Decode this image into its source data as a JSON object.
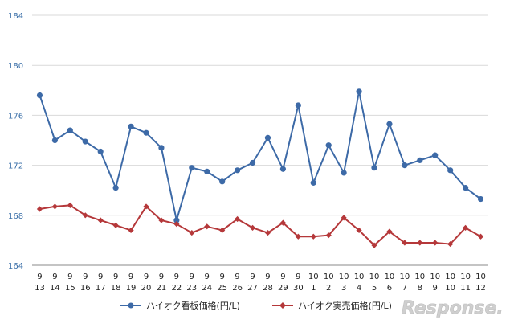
{
  "chart_data": {
    "type": "line",
    "ylim": [
      164,
      184
    ],
    "yticks": [
      164,
      168,
      172,
      176,
      180,
      184
    ],
    "grid": "horizontal",
    "legend_position": "bottom",
    "x_months": [
      "9",
      "9",
      "9",
      "9",
      "9",
      "9",
      "9",
      "9",
      "9",
      "9",
      "9",
      "9",
      "9",
      "9",
      "9",
      "9",
      "9",
      "9",
      "10",
      "10",
      "10",
      "10",
      "10",
      "10",
      "10",
      "10",
      "10",
      "10",
      "10",
      "10"
    ],
    "x_days": [
      "13",
      "14",
      "15",
      "16",
      "17",
      "18",
      "19",
      "20",
      "21",
      "22",
      "23",
      "24",
      "25",
      "26",
      "27",
      "28",
      "29",
      "30",
      "1",
      "2",
      "3",
      "4",
      "5",
      "6",
      "7",
      "8",
      "9",
      "10",
      "11",
      "12"
    ],
    "series": [
      {
        "name": "ハイオク看板価格(円/L)",
        "color": "#3d6aa7",
        "marker": "circle",
        "values": [
          177.6,
          174.0,
          174.8,
          173.9,
          173.1,
          170.2,
          175.1,
          174.6,
          173.4,
          167.6,
          171.8,
          171.5,
          170.7,
          171.6,
          172.2,
          174.2,
          171.7,
          176.8,
          170.6,
          173.6,
          171.4,
          177.9,
          171.8,
          175.3,
          172.0,
          172.4,
          172.8,
          171.6,
          170.2,
          169.3
        ]
      },
      {
        "name": "ハイオク実売価格(円/L)",
        "color": "#b5383a",
        "marker": "diamond",
        "values": [
          168.5,
          168.7,
          168.8,
          168.0,
          167.6,
          167.2,
          166.8,
          168.7,
          167.6,
          167.3,
          166.6,
          167.1,
          166.8,
          167.7,
          167.0,
          166.6,
          167.4,
          166.3,
          166.3,
          166.4,
          167.8,
          166.8,
          165.6,
          166.7,
          165.8,
          165.8,
          165.8,
          165.7,
          167.0,
          166.3
        ]
      }
    ]
  },
  "watermark_text": "Response."
}
